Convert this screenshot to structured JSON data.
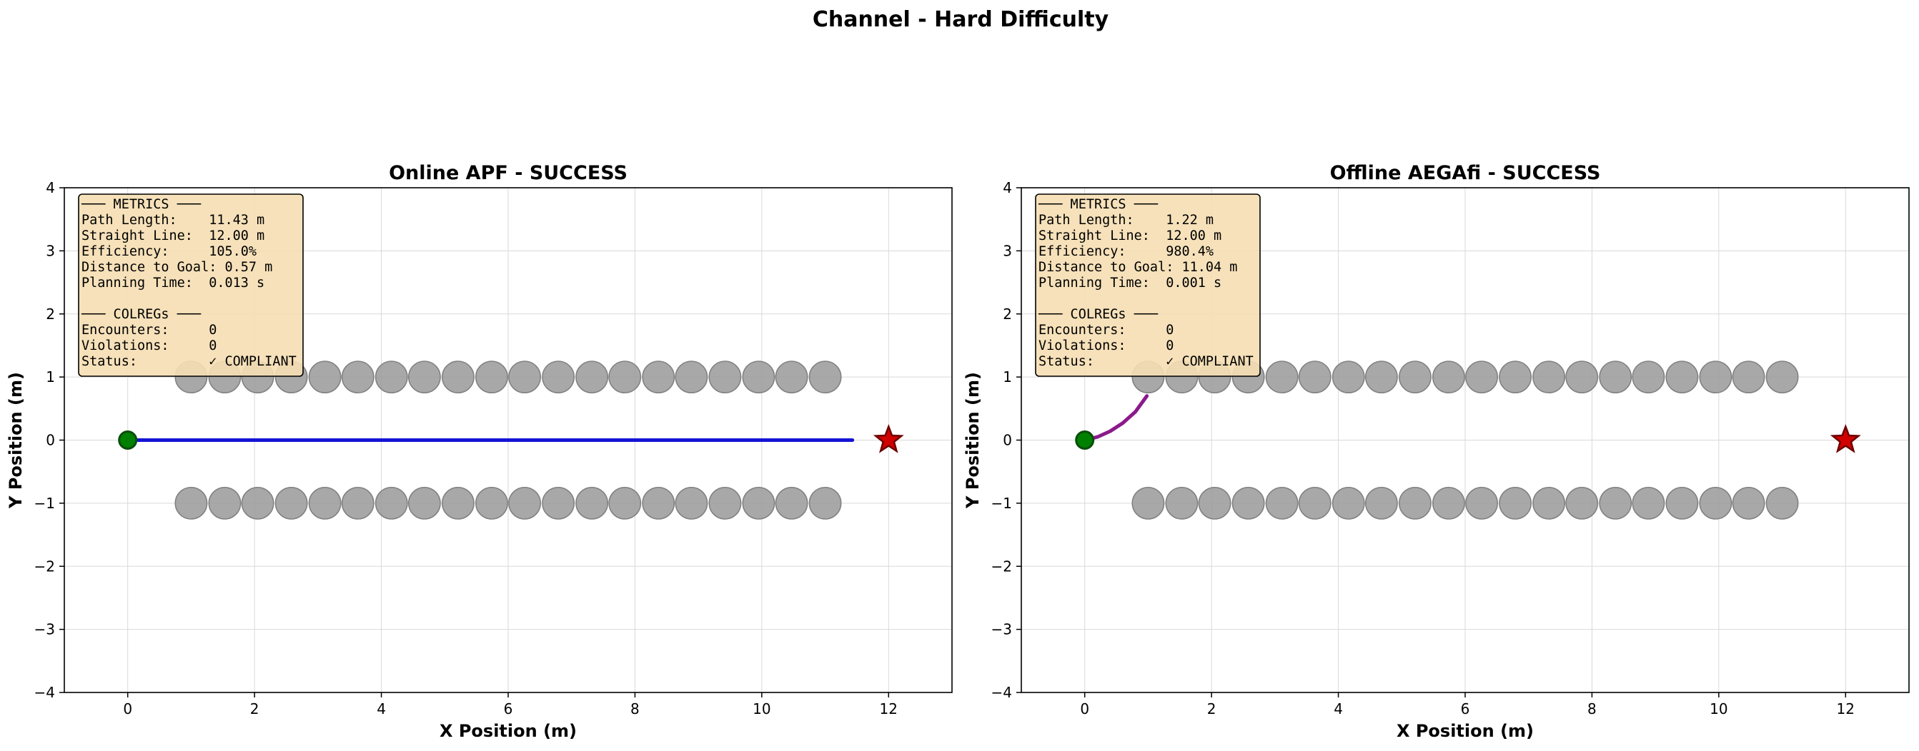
{
  "figure": {
    "suptitle": "Channel - Hard Difficulty"
  },
  "chart_data": [
    {
      "type": "line",
      "title": "Online APF - SUCCESS",
      "xlabel": "X Position (m)",
      "ylabel": "Y Position (m)",
      "xlim": [
        -1,
        13
      ],
      "ylim": [
        -4,
        4
      ],
      "xticks": [
        0,
        2,
        4,
        6,
        8,
        10,
        12
      ],
      "yticks": [
        -4,
        -3,
        -2,
        -1,
        0,
        1,
        2,
        3,
        4
      ],
      "grid": true,
      "path_color": "#1515d6",
      "path": [
        [
          0,
          0
        ],
        [
          11.43,
          0
        ]
      ],
      "start": [
        0,
        0
      ],
      "goal": [
        12,
        0
      ],
      "obstacle_radius": 0.25,
      "obstacles_x": [
        1.0,
        1.53,
        2.05,
        2.58,
        3.11,
        3.63,
        4.16,
        4.68,
        5.21,
        5.74,
        6.26,
        6.79,
        7.32,
        7.84,
        8.37,
        8.89,
        9.42,
        9.95,
        10.47,
        11.0
      ],
      "obstacles_y": [
        1,
        -1
      ],
      "metrics": [
        "─── METRICS ───",
        "Path Length:    11.43 m",
        "Straight Line:  12.00 m",
        "Efficiency:     105.0%",
        "Distance to Goal: 0.57 m",
        "Planning Time:  0.013 s",
        "",
        "─── COLREGs ───",
        "Encounters:     0",
        "Violations:     0",
        "Status:         ✓ COMPLIANT"
      ]
    },
    {
      "type": "line",
      "title": "Offline AEGAfi - SUCCESS",
      "xlabel": "X Position (m)",
      "ylabel": "Y Position (m)",
      "xlim": [
        -1,
        13
      ],
      "ylim": [
        -4,
        4
      ],
      "xticks": [
        0,
        2,
        4,
        6,
        8,
        10,
        12
      ],
      "yticks": [
        -4,
        -3,
        -2,
        -1,
        0,
        1,
        2,
        3,
        4
      ],
      "grid": true,
      "path_color": "#8b1a8b",
      "path": [
        [
          0,
          0
        ],
        [
          0.2,
          0.05
        ],
        [
          0.4,
          0.14
        ],
        [
          0.6,
          0.27
        ],
        [
          0.8,
          0.45
        ],
        [
          0.98,
          0.7
        ]
      ],
      "start": [
        0,
        0
      ],
      "goal": [
        12,
        0
      ],
      "obstacle_radius": 0.25,
      "obstacles_x": [
        1.0,
        1.53,
        2.05,
        2.58,
        3.11,
        3.63,
        4.16,
        4.68,
        5.21,
        5.74,
        6.26,
        6.79,
        7.32,
        7.84,
        8.37,
        8.89,
        9.42,
        9.95,
        10.47,
        11.0
      ],
      "obstacles_y": [
        1,
        -1
      ],
      "metrics": [
        "─── METRICS ───",
        "Path Length:    1.22 m",
        "Straight Line:  12.00 m",
        "Efficiency:     980.4%",
        "Distance to Goal: 11.04 m",
        "Planning Time:  0.001 s",
        "",
        "─── COLREGs ───",
        "Encounters:     0",
        "Violations:     0",
        "Status:         ✓ COMPLIANT"
      ]
    }
  ]
}
